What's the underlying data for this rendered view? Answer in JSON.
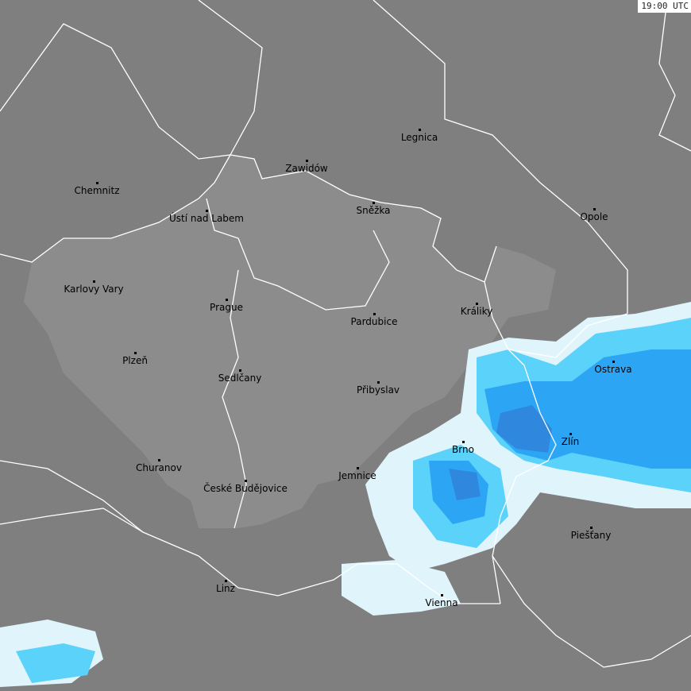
{
  "timestamp": "19:00 UTC",
  "colors": {
    "background": "#7f7f7f",
    "country_fill": "#8c8c8c",
    "border": "#ffffff",
    "rain_light": "#e0f4fc",
    "rain_moderate": "#5ad2fa",
    "rain_heavy": "#2ca5f5",
    "rain_very_heavy": "#2f88de"
  },
  "cities": [
    {
      "name": "Legnica"
    },
    {
      "name": "Zawidów"
    },
    {
      "name": "Chemnitz"
    },
    {
      "name": "Ústí nad Labem"
    },
    {
      "name": "Sněžka"
    },
    {
      "name": "Opole"
    },
    {
      "name": "Karlovy Vary"
    },
    {
      "name": "Prague"
    },
    {
      "name": "Králiky"
    },
    {
      "name": "Pardubice"
    },
    {
      "name": "Plzeň"
    },
    {
      "name": "Ostrava"
    },
    {
      "name": "Sedlčany"
    },
    {
      "name": "Přibyslav"
    },
    {
      "name": "Zlín"
    },
    {
      "name": "Brno"
    },
    {
      "name": "Churanov"
    },
    {
      "name": "Jemnice"
    },
    {
      "name": "České Budějovice"
    },
    {
      "name": "Piešťany"
    },
    {
      "name": "Linz"
    },
    {
      "name": "Vienna"
    }
  ]
}
